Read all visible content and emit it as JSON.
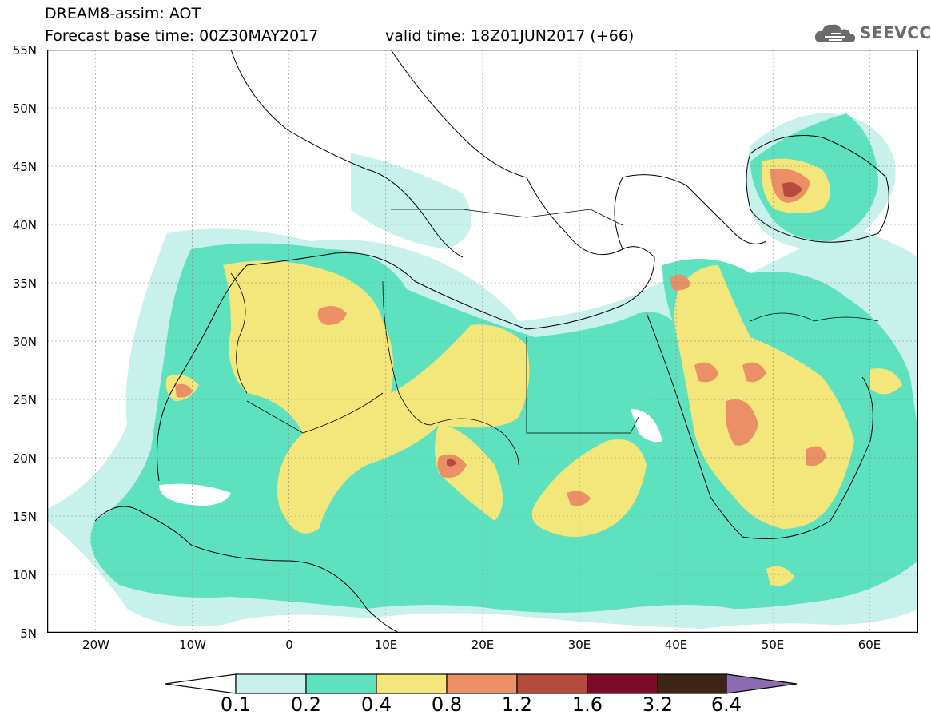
{
  "header": {
    "title_line1": "DREAM8-assim: AOT",
    "title_line2": "Forecast base time: 00Z30MAY2017",
    "valid_time": "valid time: 18Z01JUN2017 (+66)",
    "logo_text": "SEEVCCC"
  },
  "map": {
    "lat_labels": [
      "55N",
      "50N",
      "45N",
      "40N",
      "35N",
      "30N",
      "25N",
      "20N",
      "15N",
      "10N",
      "5N"
    ],
    "lon_labels": [
      "20W",
      "10W",
      "0",
      "10E",
      "20E",
      "30E",
      "40E",
      "50E",
      "60E"
    ],
    "lat_range": [
      5,
      55
    ],
    "lon_range": [
      -25,
      65
    ],
    "variable": "AOT"
  },
  "colorbar": {
    "labels": [
      "0.1",
      "0.2",
      "0.4",
      "0.8",
      "1.2",
      "1.6",
      "3.2",
      "6.4"
    ],
    "colors": [
      "#c7f1ea",
      "#5ee1bf",
      "#f3e67a",
      "#eb8f67",
      "#b44b3d",
      "#7c0b2a",
      "#3d2414",
      "#8d6bb0"
    ],
    "under_color": "#ffffff"
  }
}
